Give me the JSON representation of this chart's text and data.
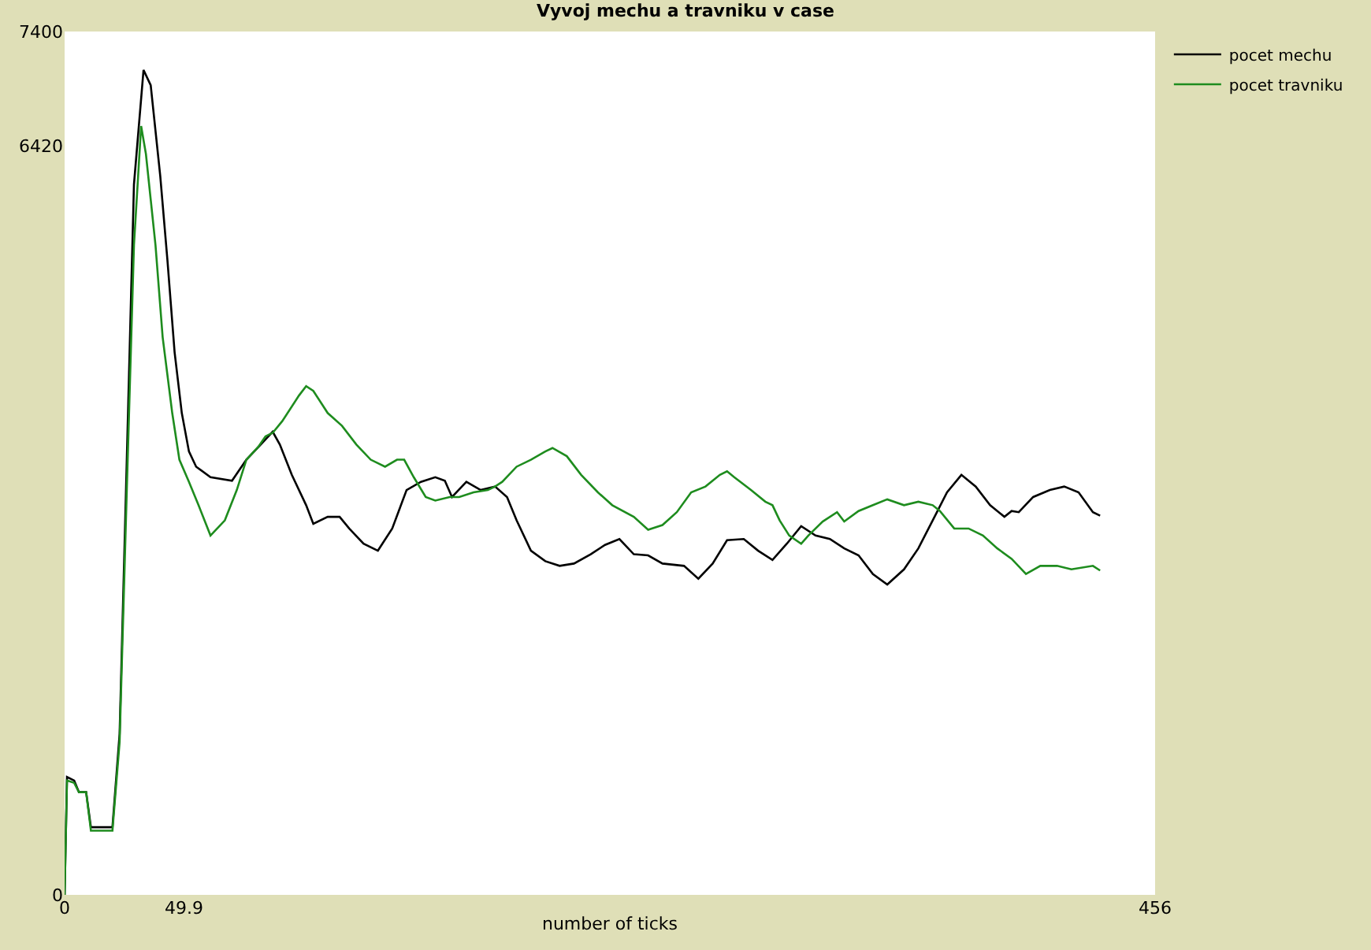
{
  "chart_data": {
    "type": "line",
    "title": "Vyvoj mechu a travniku v case",
    "xlabel": "number of ticks",
    "xlim": [
      0,
      456
    ],
    "ylim": [
      0,
      7400
    ],
    "xticks": [
      0,
      {
        "value": 49.9,
        "label": "49.9"
      },
      456
    ],
    "yticks": [
      0,
      6420,
      7400
    ],
    "legend": "top right",
    "marker": "none",
    "line_style": "solid",
    "series": [
      {
        "name": "pocet mechu",
        "color": "#000000",
        "x": [
          0,
          1,
          4,
          6,
          9,
          11,
          20,
          23,
          26,
          29,
          33,
          36,
          40,
          43,
          46,
          49,
          52,
          55,
          61,
          70,
          76,
          82,
          87,
          90,
          95,
          101,
          104,
          110,
          115,
          119,
          125,
          131,
          137,
          143,
          149,
          155,
          159,
          162,
          168,
          174,
          180,
          185,
          189,
          195,
          201,
          207,
          213,
          220,
          226,
          232,
          238,
          244,
          250,
          259,
          265,
          271,
          277,
          284,
          290,
          296,
          302,
          308,
          314,
          320,
          326,
          332,
          338,
          344,
          351,
          357,
          363,
          369,
          375,
          381,
          387,
          393,
          396,
          399,
          405,
          412,
          418,
          424,
          430,
          433
        ],
        "values": [
          0,
          1010,
          980,
          880,
          880,
          580,
          580,
          1380,
          3730,
          6090,
          7070,
          6940,
          6160,
          5440,
          4650,
          4130,
          3800,
          3670,
          3580,
          3550,
          3730,
          3860,
          3970,
          3860,
          3600,
          3340,
          3180,
          3240,
          3240,
          3140,
          3010,
          2950,
          3140,
          3470,
          3540,
          3580,
          3550,
          3410,
          3540,
          3470,
          3500,
          3410,
          3210,
          2950,
          2860,
          2820,
          2840,
          2920,
          3000,
          3050,
          2920,
          2910,
          2840,
          2820,
          2710,
          2840,
          3040,
          3050,
          2950,
          2870,
          3010,
          3160,
          3080,
          3050,
          2970,
          2910,
          2750,
          2660,
          2790,
          2970,
          3210,
          3450,
          3600,
          3500,
          3340,
          3240,
          3290,
          3280,
          3410,
          3470,
          3500,
          3450,
          3280,
          3250
        ]
      },
      {
        "name": "pocet travniku",
        "color": "#1e8c1e",
        "x": [
          0,
          1,
          4,
          6,
          9,
          11,
          20,
          23,
          26,
          29,
          32,
          34,
          38,
          41,
          45,
          48,
          52,
          56,
          61,
          67,
          72,
          76,
          81,
          84,
          87,
          91,
          98,
          101,
          104,
          110,
          116,
          122,
          128,
          134,
          139,
          142,
          146,
          151,
          155,
          161,
          165,
          171,
          177,
          180,
          183,
          189,
          195,
          201,
          204,
          210,
          216,
          223,
          229,
          238,
          244,
          250,
          256,
          262,
          268,
          274,
          277,
          280,
          287,
          293,
          296,
          299,
          303,
          308,
          311,
          317,
          323,
          326,
          332,
          338,
          344,
          351,
          357,
          363,
          366,
          372,
          378,
          384,
          390,
          396,
          402,
          408,
          415,
          421,
          430,
          433
        ],
        "values": [
          0,
          980,
          960,
          880,
          880,
          550,
          550,
          1310,
          3470,
          5570,
          6590,
          6350,
          5570,
          4780,
          4130,
          3730,
          3540,
          3340,
          3080,
          3210,
          3470,
          3730,
          3840,
          3930,
          3960,
          4060,
          4280,
          4360,
          4320,
          4130,
          4020,
          3860,
          3730,
          3670,
          3730,
          3730,
          3580,
          3410,
          3380,
          3410,
          3410,
          3450,
          3470,
          3500,
          3540,
          3670,
          3730,
          3800,
          3830,
          3760,
          3600,
          3450,
          3340,
          3240,
          3130,
          3170,
          3280,
          3450,
          3500,
          3600,
          3630,
          3580,
          3470,
          3370,
          3340,
          3210,
          3080,
          3010,
          3080,
          3200,
          3280,
          3200,
          3290,
          3340,
          3390,
          3340,
          3370,
          3340,
          3290,
          3140,
          3140,
          3080,
          2970,
          2880,
          2750,
          2820,
          2820,
          2790,
          2820,
          2780
        ]
      }
    ]
  }
}
